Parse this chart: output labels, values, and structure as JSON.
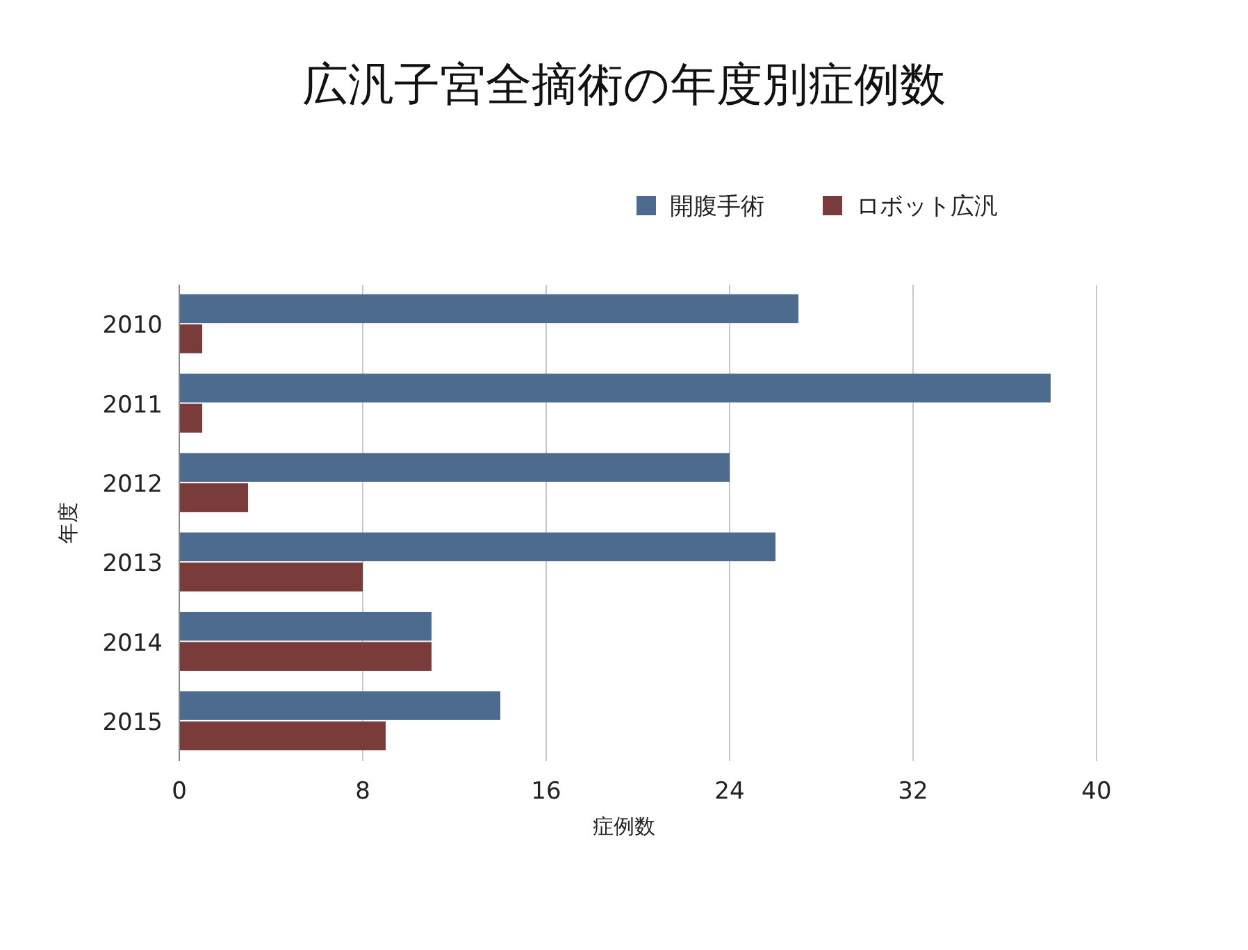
{
  "chart_data": {
    "type": "bar",
    "orientation": "horizontal",
    "title": "広汎子宮全摘術の年度別症例数",
    "xlabel": "症例数",
    "ylabel": "年度",
    "categories": [
      "2010",
      "2011",
      "2012",
      "2013",
      "2014",
      "2015"
    ],
    "series": [
      {
        "name": "開腹手術",
        "color": "#4d6a8f",
        "values": [
          27,
          38,
          24,
          26,
          11,
          14
        ]
      },
      {
        "name": "ロボット広汎",
        "color": "#7a3b3b",
        "values": [
          1,
          1,
          3,
          8,
          11,
          9
        ]
      }
    ],
    "xlim": [
      0,
      40
    ],
    "xticks": [
      0,
      8,
      16,
      24,
      32,
      40
    ],
    "grid": "x",
    "legend": "top"
  }
}
